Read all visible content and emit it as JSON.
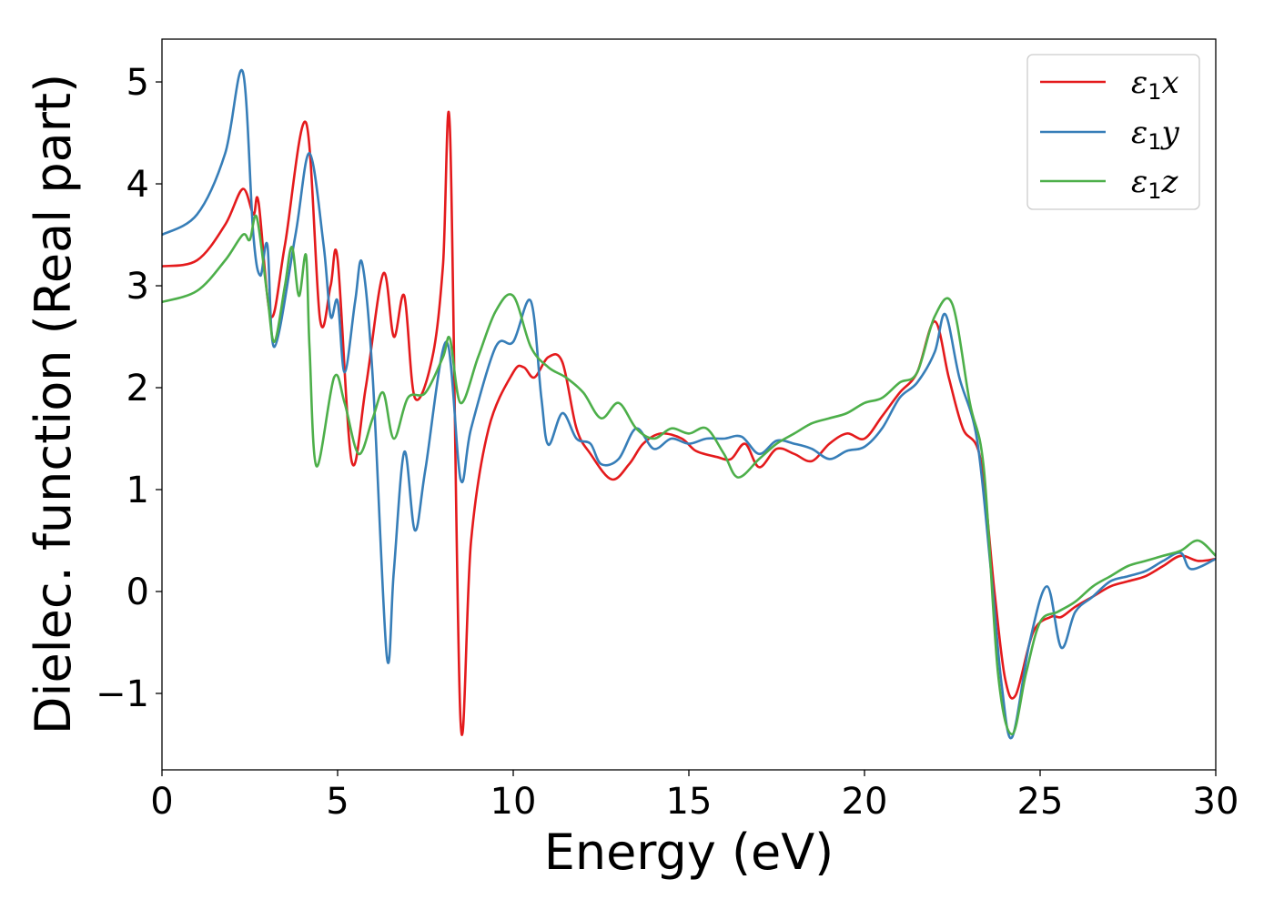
{
  "chart_data": {
    "type": "line",
    "xlabel": "Energy (eV)",
    "ylabel": "Dielec. function (Real part)",
    "xlim": [
      0,
      30
    ],
    "ylim": [
      -1.75,
      5.42
    ],
    "xticks": [
      0,
      5,
      10,
      15,
      20,
      25,
      30
    ],
    "yticks": [
      -1,
      0,
      1,
      2,
      3,
      4,
      5
    ],
    "xtick_labels": [
      "0",
      "5",
      "10",
      "15",
      "20",
      "25",
      "30"
    ],
    "ytick_labels": [
      "−1",
      "0",
      "1",
      "2",
      "3",
      "4",
      "5"
    ],
    "grid": false,
    "legend_position": "top-right",
    "series": [
      {
        "name": "ε1x",
        "color": "#e41a1c",
        "points": [
          [
            0,
            3.19
          ],
          [
            1,
            3.25
          ],
          [
            1.8,
            3.6
          ],
          [
            2.3,
            3.95
          ],
          [
            2.6,
            3.7
          ],
          [
            2.75,
            3.82
          ],
          [
            3.1,
            2.7
          ],
          [
            3.5,
            3.4
          ],
          [
            4.1,
            4.6
          ],
          [
            4.5,
            2.67
          ],
          [
            4.8,
            3.0
          ],
          [
            5.0,
            3.26
          ],
          [
            5.4,
            1.28
          ],
          [
            5.8,
            2.0
          ],
          [
            6.3,
            3.12
          ],
          [
            6.6,
            2.5
          ],
          [
            6.9,
            2.9
          ],
          [
            7.2,
            1.9
          ],
          [
            7.7,
            2.3
          ],
          [
            8.0,
            3.2
          ],
          [
            8.2,
            4.52
          ],
          [
            8.5,
            -1.27
          ],
          [
            8.8,
            0.5
          ],
          [
            9.3,
            1.6
          ],
          [
            10.0,
            2.15
          ],
          [
            10.3,
            2.2
          ],
          [
            10.6,
            2.1
          ],
          [
            11.0,
            2.3
          ],
          [
            11.4,
            2.25
          ],
          [
            11.8,
            1.6
          ],
          [
            12.2,
            1.35
          ],
          [
            12.8,
            1.1
          ],
          [
            13.3,
            1.25
          ],
          [
            13.7,
            1.45
          ],
          [
            14.2,
            1.55
          ],
          [
            14.8,
            1.5
          ],
          [
            15.2,
            1.38
          ],
          [
            15.8,
            1.32
          ],
          [
            16.2,
            1.3
          ],
          [
            16.6,
            1.45
          ],
          [
            17.0,
            1.22
          ],
          [
            17.5,
            1.4
          ],
          [
            18.0,
            1.35
          ],
          [
            18.5,
            1.28
          ],
          [
            19.0,
            1.45
          ],
          [
            19.5,
            1.55
          ],
          [
            20.0,
            1.5
          ],
          [
            20.5,
            1.72
          ],
          [
            21.0,
            1.95
          ],
          [
            21.5,
            2.15
          ],
          [
            22.0,
            2.65
          ],
          [
            22.4,
            2.1
          ],
          [
            22.8,
            1.6
          ],
          [
            23.3,
            1.3
          ],
          [
            23.7,
            0.0
          ],
          [
            24.0,
            -0.85
          ],
          [
            24.3,
            -1.02
          ],
          [
            24.8,
            -0.4
          ],
          [
            25.3,
            -0.25
          ],
          [
            25.6,
            -0.25
          ],
          [
            26.0,
            -0.15
          ],
          [
            26.5,
            -0.05
          ],
          [
            27.0,
            0.05
          ],
          [
            27.5,
            0.1
          ],
          [
            28.0,
            0.15
          ],
          [
            28.5,
            0.25
          ],
          [
            29.0,
            0.35
          ],
          [
            29.5,
            0.3
          ],
          [
            30.0,
            0.32
          ]
        ]
      },
      {
        "name": "ε1y",
        "color": "#377eb8",
        "points": [
          [
            0,
            3.5
          ],
          [
            1,
            3.7
          ],
          [
            1.8,
            4.3
          ],
          [
            2.3,
            5.1
          ],
          [
            2.6,
            3.5
          ],
          [
            2.8,
            3.1
          ],
          [
            3.0,
            3.4
          ],
          [
            3.2,
            2.4
          ],
          [
            3.8,
            3.5
          ],
          [
            4.2,
            4.3
          ],
          [
            4.6,
            3.4
          ],
          [
            4.8,
            2.7
          ],
          [
            5.0,
            2.85
          ],
          [
            5.2,
            2.15
          ],
          [
            5.5,
            2.85
          ],
          [
            5.7,
            3.22
          ],
          [
            6.0,
            2.1
          ],
          [
            6.4,
            -0.63
          ],
          [
            6.6,
            0.2
          ],
          [
            6.9,
            1.37
          ],
          [
            7.2,
            0.6
          ],
          [
            7.5,
            1.2
          ],
          [
            8.1,
            2.45
          ],
          [
            8.5,
            1.1
          ],
          [
            8.8,
            1.6
          ],
          [
            9.5,
            2.4
          ],
          [
            10.0,
            2.45
          ],
          [
            10.5,
            2.85
          ],
          [
            10.8,
            1.9
          ],
          [
            11.0,
            1.44
          ],
          [
            11.4,
            1.75
          ],
          [
            11.8,
            1.5
          ],
          [
            12.2,
            1.45
          ],
          [
            12.5,
            1.25
          ],
          [
            13.0,
            1.3
          ],
          [
            13.5,
            1.6
          ],
          [
            14.0,
            1.4
          ],
          [
            14.5,
            1.5
          ],
          [
            15.0,
            1.45
          ],
          [
            15.5,
            1.5
          ],
          [
            16.0,
            1.5
          ],
          [
            16.5,
            1.52
          ],
          [
            17.0,
            1.35
          ],
          [
            17.5,
            1.48
          ],
          [
            18.0,
            1.45
          ],
          [
            18.5,
            1.4
          ],
          [
            19.0,
            1.3
          ],
          [
            19.5,
            1.38
          ],
          [
            20.0,
            1.42
          ],
          [
            20.5,
            1.6
          ],
          [
            21.0,
            1.9
          ],
          [
            21.5,
            2.05
          ],
          [
            22.0,
            2.35
          ],
          [
            22.3,
            2.72
          ],
          [
            22.7,
            2.1
          ],
          [
            23.2,
            1.5
          ],
          [
            23.6,
            0.2
          ],
          [
            23.9,
            -0.9
          ],
          [
            24.2,
            -1.43
          ],
          [
            24.7,
            -0.5
          ],
          [
            25.2,
            0.05
          ],
          [
            25.6,
            -0.55
          ],
          [
            26.0,
            -0.2
          ],
          [
            26.5,
            -0.05
          ],
          [
            27.0,
            0.1
          ],
          [
            27.5,
            0.15
          ],
          [
            28.0,
            0.2
          ],
          [
            28.5,
            0.3
          ],
          [
            29.0,
            0.38
          ],
          [
            29.3,
            0.22
          ],
          [
            30.0,
            0.32
          ]
        ]
      },
      {
        "name": "ε1z",
        "color": "#4daf4a",
        "points": [
          [
            0,
            2.84
          ],
          [
            1,
            2.95
          ],
          [
            1.8,
            3.25
          ],
          [
            2.3,
            3.5
          ],
          [
            2.5,
            3.45
          ],
          [
            2.7,
            3.67
          ],
          [
            3.0,
            2.9
          ],
          [
            3.2,
            2.45
          ],
          [
            3.5,
            3.0
          ],
          [
            3.7,
            3.38
          ],
          [
            3.9,
            2.9
          ],
          [
            4.1,
            3.3
          ],
          [
            4.2,
            2.4
          ],
          [
            4.4,
            1.23
          ],
          [
            4.9,
            2.1
          ],
          [
            5.2,
            1.85
          ],
          [
            5.6,
            1.35
          ],
          [
            6.0,
            1.7
          ],
          [
            6.3,
            1.95
          ],
          [
            6.6,
            1.5
          ],
          [
            7.0,
            1.9
          ],
          [
            7.5,
            1.95
          ],
          [
            8.0,
            2.3
          ],
          [
            8.2,
            2.48
          ],
          [
            8.5,
            1.85
          ],
          [
            9.0,
            2.3
          ],
          [
            9.5,
            2.75
          ],
          [
            10.0,
            2.9
          ],
          [
            10.5,
            2.4
          ],
          [
            11.0,
            2.2
          ],
          [
            11.5,
            2.1
          ],
          [
            12.0,
            1.95
          ],
          [
            12.5,
            1.7
          ],
          [
            13.0,
            1.85
          ],
          [
            13.5,
            1.6
          ],
          [
            14.0,
            1.5
          ],
          [
            14.5,
            1.6
          ],
          [
            15.0,
            1.55
          ],
          [
            15.5,
            1.6
          ],
          [
            16.0,
            1.35
          ],
          [
            16.4,
            1.12
          ],
          [
            17.0,
            1.3
          ],
          [
            17.5,
            1.45
          ],
          [
            18.0,
            1.55
          ],
          [
            18.5,
            1.65
          ],
          [
            19.0,
            1.7
          ],
          [
            19.5,
            1.75
          ],
          [
            20.0,
            1.85
          ],
          [
            20.5,
            1.9
          ],
          [
            21.0,
            2.05
          ],
          [
            21.5,
            2.15
          ],
          [
            22.0,
            2.7
          ],
          [
            22.5,
            2.82
          ],
          [
            23.0,
            1.85
          ],
          [
            23.4,
            1.2
          ],
          [
            23.8,
            -0.8
          ],
          [
            24.2,
            -1.4
          ],
          [
            24.6,
            -0.8
          ],
          [
            25.0,
            -0.3
          ],
          [
            25.5,
            -0.2
          ],
          [
            26.0,
            -0.1
          ],
          [
            26.5,
            0.05
          ],
          [
            27.0,
            0.15
          ],
          [
            27.5,
            0.25
          ],
          [
            28.0,
            0.3
          ],
          [
            28.5,
            0.35
          ],
          [
            29.0,
            0.4
          ],
          [
            29.5,
            0.5
          ],
          [
            30.0,
            0.35
          ]
        ]
      }
    ]
  }
}
